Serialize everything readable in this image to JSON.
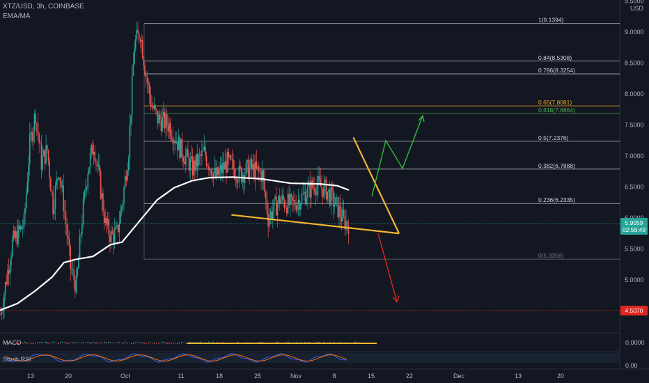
{
  "header": {
    "symbol_line": "XTZ/USD, 3h, COINBASE",
    "indicator_line": "EMA/MA"
  },
  "axis": {
    "currency": "USD",
    "price_ticks": [
      "9.5000",
      "9.0000",
      "8.5000",
      "8.0000",
      "7.5000",
      "7.0000",
      "6.5000",
      "6.0000",
      "5.5000",
      "5.0000"
    ],
    "price_tick_values": [
      9.5,
      9.0,
      8.5,
      8.0,
      7.5,
      7.0,
      6.5,
      6.0,
      5.5,
      5.0
    ],
    "date_ticks": [
      "13",
      "20",
      "Oct",
      "11",
      "18",
      "25",
      "Nov",
      "8",
      "15",
      "22",
      "Dec",
      "13",
      "20"
    ]
  },
  "badges": {
    "current_price": "5.9059",
    "countdown": "02:58:49",
    "target_price": "4.5070"
  },
  "fib_levels": [
    {
      "label": "1(9.1394)",
      "value": 9.1394,
      "color": "#d1d4dc"
    },
    {
      "label": "0.84(8.5308)",
      "value": 8.5308,
      "color": "#d1d4dc"
    },
    {
      "label": "0.786(8.3254)",
      "value": 8.3254,
      "color": "#d1d4dc"
    },
    {
      "label": "0.65(7.8081)",
      "value": 7.8081,
      "color": "#f5a623"
    },
    {
      "label": "0.618(7.6864)",
      "value": 7.6864,
      "color": "#4caf50"
    },
    {
      "label": "0.5(7.2376)",
      "value": 7.2376,
      "color": "#d1d4dc"
    },
    {
      "label": "0.382(6.7888)",
      "value": 6.7888,
      "color": "#d1d4dc"
    },
    {
      "label": "0.236(6.2335)",
      "value": 6.2335,
      "color": "#d1d4dc"
    },
    {
      "label": "0(5.3358)",
      "value": 5.3358,
      "color": "#787b86"
    }
  ],
  "indicators": {
    "macd_label": "MACD",
    "macd_value": "0.0000",
    "stoch_label": "Stoch RSI",
    "stoch_value": "0.00"
  },
  "colors": {
    "background": "#131722",
    "bull": "#26a69a",
    "bear": "#ef5350",
    "ema": "#ffffff",
    "trendline": "#f5b530",
    "up_arrow": "#2ebd3a",
    "down_arrow": "#e0261e",
    "current_price_badge": "#26a69a",
    "target_badge": "#e0261e"
  },
  "chart_data": {
    "type": "candlestick",
    "ylim": [
      4.5,
      9.5
    ],
    "ema_series": [
      {
        "x": 0.0,
        "y": 4.51
      },
      {
        "x": 0.03,
        "y": 4.62
      },
      {
        "x": 0.06,
        "y": 4.82
      },
      {
        "x": 0.09,
        "y": 5.05
      },
      {
        "x": 0.11,
        "y": 5.28
      },
      {
        "x": 0.13,
        "y": 5.33
      },
      {
        "x": 0.16,
        "y": 5.38
      },
      {
        "x": 0.19,
        "y": 5.57
      },
      {
        "x": 0.21,
        "y": 5.61
      },
      {
        "x": 0.24,
        "y": 5.95
      },
      {
        "x": 0.27,
        "y": 6.29
      },
      {
        "x": 0.3,
        "y": 6.49
      },
      {
        "x": 0.33,
        "y": 6.6
      },
      {
        "x": 0.36,
        "y": 6.65
      },
      {
        "x": 0.4,
        "y": 6.66
      },
      {
        "x": 0.45,
        "y": 6.63
      },
      {
        "x": 0.5,
        "y": 6.56
      },
      {
        "x": 0.55,
        "y": 6.55
      },
      {
        "x": 0.58,
        "y": 6.52
      },
      {
        "x": 0.6,
        "y": 6.45
      }
    ],
    "price_path": [
      {
        "x": 0.0,
        "y": 4.45
      },
      {
        "x": 0.02,
        "y": 5.6
      },
      {
        "x": 0.04,
        "y": 5.9
      },
      {
        "x": 0.05,
        "y": 7.2
      },
      {
        "x": 0.06,
        "y": 7.7
      },
      {
        "x": 0.07,
        "y": 6.9
      },
      {
        "x": 0.08,
        "y": 7.1
      },
      {
        "x": 0.09,
        "y": 6.2
      },
      {
        "x": 0.1,
        "y": 6.8
      },
      {
        "x": 0.11,
        "y": 6.1
      },
      {
        "x": 0.12,
        "y": 5.2
      },
      {
        "x": 0.13,
        "y": 4.9
      },
      {
        "x": 0.14,
        "y": 6.0
      },
      {
        "x": 0.15,
        "y": 6.8
      },
      {
        "x": 0.16,
        "y": 7.2
      },
      {
        "x": 0.17,
        "y": 6.6
      },
      {
        "x": 0.18,
        "y": 5.9
      },
      {
        "x": 0.19,
        "y": 5.7
      },
      {
        "x": 0.2,
        "y": 5.75
      },
      {
        "x": 0.21,
        "y": 6.3
      },
      {
        "x": 0.22,
        "y": 7.1
      },
      {
        "x": 0.23,
        "y": 8.8
      },
      {
        "x": 0.24,
        "y": 9.0
      },
      {
        "x": 0.25,
        "y": 8.3
      },
      {
        "x": 0.26,
        "y": 7.8
      },
      {
        "x": 0.27,
        "y": 7.6
      },
      {
        "x": 0.29,
        "y": 7.5
      },
      {
        "x": 0.31,
        "y": 7.1
      },
      {
        "x": 0.33,
        "y": 6.8
      },
      {
        "x": 0.35,
        "y": 7.05
      },
      {
        "x": 0.37,
        "y": 6.65
      },
      {
        "x": 0.39,
        "y": 6.9
      },
      {
        "x": 0.41,
        "y": 6.7
      },
      {
        "x": 0.43,
        "y": 6.8
      },
      {
        "x": 0.45,
        "y": 6.7
      },
      {
        "x": 0.46,
        "y": 6.0
      },
      {
        "x": 0.48,
        "y": 6.3
      },
      {
        "x": 0.5,
        "y": 6.2
      },
      {
        "x": 0.52,
        "y": 6.35
      },
      {
        "x": 0.54,
        "y": 6.55
      },
      {
        "x": 0.56,
        "y": 6.45
      },
      {
        "x": 0.58,
        "y": 6.15
      },
      {
        "x": 0.59,
        "y": 5.95
      },
      {
        "x": 0.6,
        "y": 5.9
      }
    ],
    "triangle_upper": {
      "start": {
        "x": 0.47,
        "y": 7.3
      },
      "end": {
        "x": 0.66,
        "y": 5.75
      }
    },
    "triangle_lower": {
      "start": {
        "x": 0.38,
        "y": 6.05
      },
      "end": {
        "x": 0.66,
        "y": 5.75
      }
    },
    "bullish_path": [
      {
        "x": 0.615,
        "y": 6.35
      },
      {
        "x": 0.645,
        "y": 7.25
      },
      {
        "x": 0.67,
        "y": 6.8
      },
      {
        "x": 0.7,
        "y": 7.65
      }
    ],
    "bearish_path": [
      {
        "x": 0.63,
        "y": 5.75
      },
      {
        "x": 0.66,
        "y": 4.6
      }
    ],
    "target_value": 4.507
  }
}
